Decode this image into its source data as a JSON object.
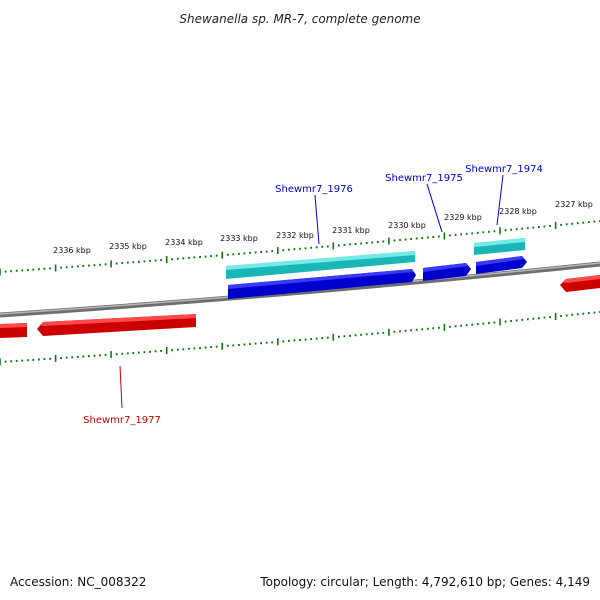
{
  "title": "Shewanella sp. MR-7, complete genome",
  "footer": {
    "accession": "Accession: NC_008322",
    "summary": "Topology: circular; Length: 4,792,610 bp; Genes: 4,149"
  },
  "tick_labels": [
    "2336 kbp",
    "2335 kbp",
    "2334 kbp",
    "2333 kbp",
    "2332 kbp",
    "2331 kbp",
    "2330 kbp",
    "2329 kbp",
    "2328 kbp",
    "2327 kbp"
  ],
  "gene_labels": {
    "g1974": "Shewmr7_1974",
    "g1975": "Shewmr7_1975",
    "g1976": "Shewmr7_1976",
    "g1977": "Shewmr7_1977"
  },
  "colors": {
    "forward_strand": "#0000e0",
    "forward_strand_alt": "#22cccc",
    "reverse_strand": "#ee1111",
    "backbone": "#888888",
    "ticks": "#117711"
  }
}
